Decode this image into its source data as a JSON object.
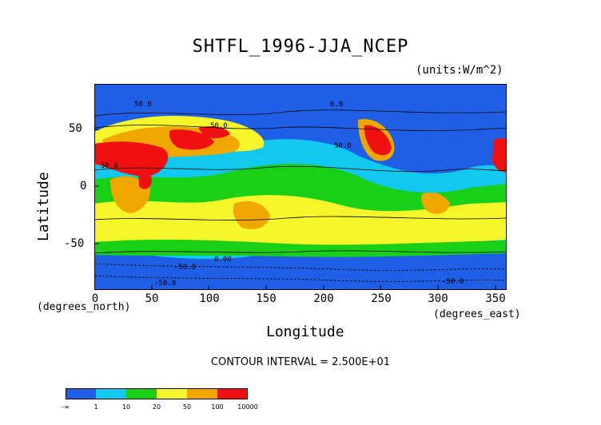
{
  "title": "SHTFL_1996-JJA_NCEP",
  "units": "(units:W/m^2)",
  "axes": {
    "ylabel": "Latitude",
    "xlabel": "Longitude",
    "y_ticks": [
      "50",
      "0",
      "-50"
    ],
    "x_ticks": [
      "0",
      "50",
      "100",
      "150",
      "200",
      "250",
      "300",
      "350"
    ],
    "x_unit_left": "(degrees_north)",
    "x_unit_right": "(degrees_east)"
  },
  "contour_interval": "CONTOUR INTERVAL = 2.500E+01",
  "contour_labels": [
    "50.0",
    "50.0",
    "-50.0",
    "-50.0",
    "0.00",
    "0.0",
    "50.0",
    "50.0",
    "-50.0"
  ],
  "legend": {
    "labels": [
      "-∞",
      "1",
      "10",
      "20",
      "50",
      "100",
      "10000"
    ],
    "colors": [
      "#1f5fe6",
      "#10c8f0",
      "#18d018",
      "#f5f52a",
      "#f0a800",
      "#f01010"
    ]
  },
  "colors": {
    "deep_blue": "#1f5fe6",
    "cyan": "#10c8f0",
    "green": "#18d018",
    "yellow": "#f5f52a",
    "orange": "#f0a800",
    "red": "#f01010"
  }
}
